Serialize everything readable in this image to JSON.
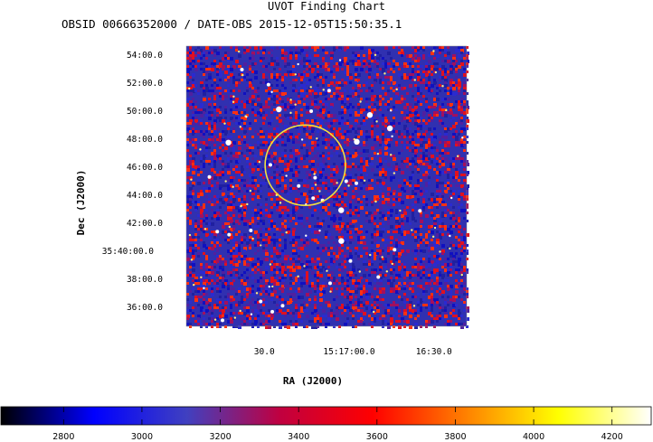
{
  "chart_data": {
    "type": "heatmap",
    "title": "UVOT Finding Chart",
    "subtitle": "OBSID 00666352000 / DATE-OBS 2015-12-05T15:50:35.1",
    "xlabel": "RA (J2000)",
    "ylabel": "Dec (J2000)",
    "x_ticks": [
      {
        "label": "30.0",
        "ra_sec": 1020
      },
      {
        "label": "15:17:00.0",
        "ra_sec": 990
      },
      {
        "label": "16:30.0",
        "ra_sec": 960
      }
    ],
    "x_range_ra_sec": [
      1047.6,
      948.4
    ],
    "y_ticks": [
      {
        "label": "54:00.0",
        "dec_arcmin": 14
      },
      {
        "label": "52:00.0",
        "dec_arcmin": 12
      },
      {
        "label": "50:00.0",
        "dec_arcmin": 10
      },
      {
        "label": "48:00.0",
        "dec_arcmin": 8
      },
      {
        "label": "46:00.0",
        "dec_arcmin": 6
      },
      {
        "label": "44:00.0",
        "dec_arcmin": 4
      },
      {
        "label": "42:00.0",
        "dec_arcmin": 2
      },
      {
        "label": "35:40:00.0",
        "dec_arcmin": 0
      },
      {
        "label": "38:00.0",
        "dec_arcmin": -2
      },
      {
        "label": "36:00.0",
        "dec_arcmin": -4
      }
    ],
    "y_range_dec_arcmin": [
      -5.4,
      14.6
    ],
    "target_circle": {
      "ra_sec": 1005.5,
      "dec_arcmin": 6.1,
      "radius_arcmin": 1.55,
      "color": "#f0e040"
    },
    "colorbar": {
      "ticks": [
        "2800",
        "3000",
        "3200",
        "3400",
        "3600",
        "3800",
        "4000",
        "4200"
      ],
      "range": [
        2640,
        4300
      ],
      "colormap": [
        "#000000",
        "#0000ff",
        "#4040c0",
        "#c00040",
        "#ff0000",
        "#ff8000",
        "#ffff00",
        "#ffffff"
      ]
    },
    "grid": false
  }
}
